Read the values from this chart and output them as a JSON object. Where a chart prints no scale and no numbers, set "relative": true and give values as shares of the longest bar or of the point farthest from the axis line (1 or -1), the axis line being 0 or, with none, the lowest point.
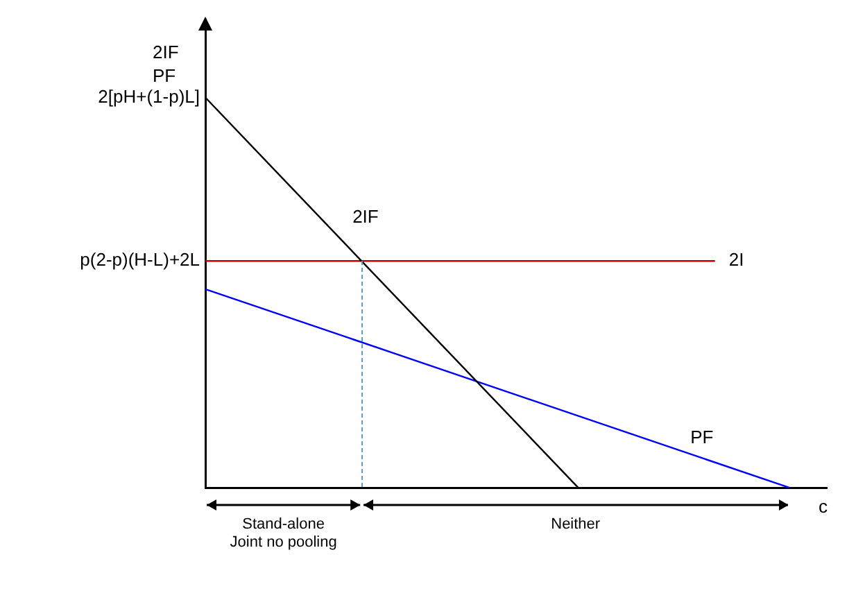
{
  "chart_data": {
    "type": "line",
    "relative": true,
    "ylabel": "2IF\nPF",
    "xlabel": "c",
    "legend": false,
    "grid": false,
    "marker": "none",
    "categories": [
      null,
      null,
      null,
      null,
      null,
      null,
      null,
      null,
      null,
      null,
      null,
      null,
      null,
      null,
      null,
      null,
      null,
      null,
      null,
      null,
      null,
      null,
      null,
      null,
      null,
      null,
      null,
      null,
      null,
      null,
      null,
      null,
      null,
      null,
      null,
      null,
      null,
      null,
      null,
      null,
      null,
      null,
      null,
      null,
      null,
      null,
      null,
      null,
      null,
      null,
      null
    ],
    "series": [
      {
        "name": "2IF",
        "color": "#000000",
        "values": [
          1,
          null,
          null,
          null,
          null,
          null,
          null,
          null,
          null,
          null,
          null,
          null,
          null,
          null,
          null,
          null,
          null,
          null,
          null,
          null,
          null,
          null,
          null,
          null,
          null,
          null,
          null,
          null,
          null,
          null,
          0,
          null,
          null,
          null,
          null,
          null,
          null,
          null,
          null,
          null,
          null,
          null,
          null,
          null,
          null,
          null,
          null,
          null,
          null,
          null,
          null
        ]
      },
      {
        "name": "2I",
        "color": "#c00000",
        "values": [
          0.581,
          null,
          null,
          null,
          null,
          null,
          null,
          null,
          null,
          null,
          null,
          null,
          null,
          null,
          null,
          null,
          null,
          null,
          null,
          null,
          null,
          null,
          null,
          null,
          null,
          null,
          null,
          null,
          null,
          null,
          null,
          null,
          null,
          null,
          null,
          null,
          null,
          null,
          null,
          null,
          null,
          0.581,
          null,
          null,
          null,
          null,
          null,
          null,
          null,
          null,
          null
        ]
      },
      {
        "name": "PF",
        "color": "#0000ff",
        "values": [
          0.509,
          null,
          null,
          null,
          null,
          null,
          null,
          null,
          null,
          null,
          null,
          null,
          null,
          null,
          null,
          null,
          null,
          null,
          null,
          null,
          null,
          null,
          null,
          null,
          null,
          null,
          null,
          null,
          null,
          null,
          null,
          null,
          null,
          null,
          null,
          null,
          null,
          null,
          null,
          null,
          null,
          null,
          null,
          null,
          null,
          null,
          null,
          0,
          null,
          null,
          null
        ]
      }
    ],
    "annotations": [
      "2[pH+(1-p)L]",
      "p(2-p)(H-L)+2L",
      "Stand-alone\nJoint no pooling",
      "Neither"
    ]
  }
}
